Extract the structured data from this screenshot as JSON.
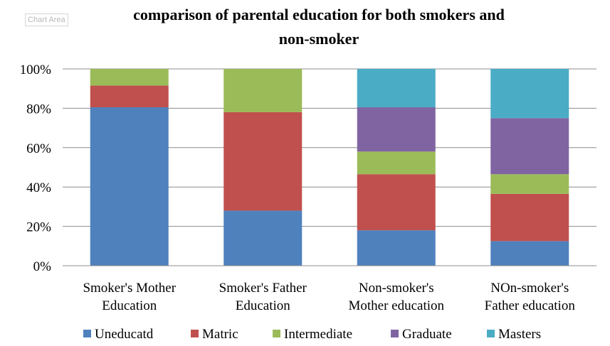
{
  "chart_area_tooltip": "Chart Area",
  "chart_data": {
    "type": "bar",
    "stacked": "percent",
    "title_lines": [
      "comparison of parental education for both smokers and",
      "non-smoker"
    ],
    "categories": [
      [
        "Smoker's Mother",
        "Education"
      ],
      [
        "Smoker's Father",
        "Education"
      ],
      [
        "Non-smoker's",
        "Mother education"
      ],
      [
        "NOn-smoker's",
        "Father education"
      ]
    ],
    "ylim": [
      0,
      100
    ],
    "yticks": [
      "0%",
      "20%",
      "40%",
      "60%",
      "80%",
      "100%"
    ],
    "grid": true,
    "legend_position": "bottom",
    "series": [
      {
        "name": "Uneducatd",
        "color": "#4f81bd",
        "values": [
          80.5,
          28,
          18,
          12.5
        ]
      },
      {
        "name": "Matric",
        "color": "#c0504d",
        "values": [
          11,
          50,
          28.5,
          24
        ]
      },
      {
        "name": "Intermediate",
        "color": "#9bbb59",
        "values": [
          8.5,
          22,
          11.5,
          10
        ]
      },
      {
        "name": "Graduate",
        "color": "#8064a2",
        "values": [
          0,
          0,
          22.5,
          28.5
        ]
      },
      {
        "name": "Masters",
        "color": "#4bacc6",
        "values": [
          0,
          0,
          19.5,
          25
        ]
      }
    ]
  }
}
